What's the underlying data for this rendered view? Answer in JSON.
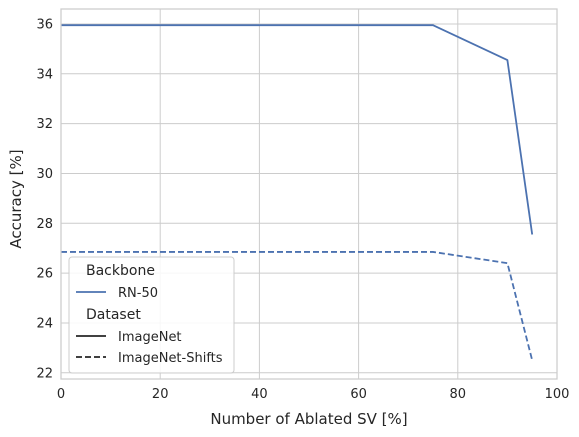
{
  "chart_data": {
    "type": "line",
    "xlabel": "Number of Ablated SV [%]",
    "ylabel": "Accuracy [%]",
    "xlim": [
      0,
      100
    ],
    "ylim": [
      21.75,
      36.6
    ],
    "xticks": [
      0,
      20,
      40,
      60,
      80,
      100
    ],
    "yticks": [
      22,
      24,
      26,
      28,
      30,
      32,
      34,
      36
    ],
    "grid": true,
    "legend_placement": "lower-left",
    "line_color": "#4c72b0",
    "series": [
      {
        "name": "RN-50 / ImageNet",
        "style": "solid",
        "x": [
          0,
          75,
          90,
          95
        ],
        "y": [
          35.95,
          35.95,
          34.55,
          27.55
        ]
      },
      {
        "name": "RN-50 / ImageNet-Shifts",
        "style": "dashed",
        "x": [
          0,
          75,
          90,
          95
        ],
        "y": [
          26.85,
          26.85,
          26.4,
          22.5
        ]
      }
    ],
    "legend": {
      "title_backbone": "Backbone",
      "backbone_entry": "RN-50",
      "title_dataset": "Dataset",
      "dataset_solid": "ImageNet",
      "dataset_dashed": "ImageNet-Shifts"
    }
  }
}
